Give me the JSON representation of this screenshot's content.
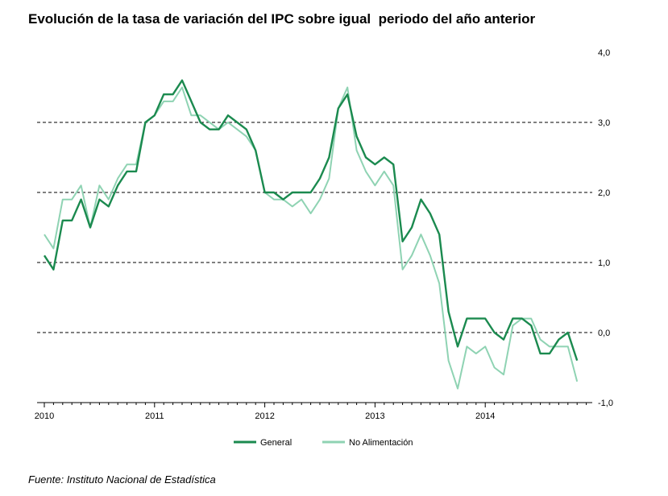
{
  "title": "Evolución de la tasa de variación del IPC sobre igual  periodo del año anterior",
  "source": "Fuente: Instituto Nacional de Estadística",
  "colors": {
    "general": "#1b8a4f",
    "no_alimentacion": "#8fd3b3",
    "grid": "#000000"
  },
  "chart_data": {
    "type": "line",
    "title": "Evolución de la tasa de variación del IPC sobre igual  periodo del año anterior",
    "xlabel": "",
    "ylabel": "",
    "ylim": [
      -1.0,
      4.0
    ],
    "y_ticks": [
      "4,0",
      "3,0",
      "2,0",
      "1,0",
      "0,0",
      "-1,0"
    ],
    "y_tick_values": [
      4.0,
      3.0,
      2.0,
      1.0,
      0.0,
      -1.0
    ],
    "y_axis_side": "right",
    "x_ticks": [
      "2010",
      "2011",
      "2012",
      "2013",
      "2014"
    ],
    "gridlines": [
      1.0,
      2.0,
      3.0,
      0.0
    ],
    "legend_position": "bottom-center",
    "x": [
      "2010-01",
      "2010-02",
      "2010-03",
      "2010-04",
      "2010-05",
      "2010-06",
      "2010-07",
      "2010-08",
      "2010-09",
      "2010-10",
      "2010-11",
      "2010-12",
      "2011-01",
      "2011-02",
      "2011-03",
      "2011-04",
      "2011-05",
      "2011-06",
      "2011-07",
      "2011-08",
      "2011-09",
      "2011-10",
      "2011-11",
      "2011-12",
      "2012-01",
      "2012-02",
      "2012-03",
      "2012-04",
      "2012-05",
      "2012-06",
      "2012-07",
      "2012-08",
      "2012-09",
      "2012-10",
      "2012-11",
      "2012-12",
      "2013-01",
      "2013-02",
      "2013-03",
      "2013-04",
      "2013-05",
      "2013-06",
      "2013-07",
      "2013-08",
      "2013-09",
      "2013-10",
      "2013-11",
      "2013-12",
      "2014-01",
      "2014-02",
      "2014-03",
      "2014-04",
      "2014-05",
      "2014-06",
      "2014-07",
      "2014-08",
      "2014-09",
      "2014-10",
      "2014-11"
    ],
    "series": [
      {
        "name": "General",
        "values": [
          1.1,
          0.9,
          1.6,
          1.6,
          1.9,
          1.5,
          1.9,
          1.8,
          2.1,
          2.3,
          2.3,
          3.0,
          3.1,
          3.4,
          3.4,
          3.6,
          3.3,
          3.0,
          2.9,
          2.9,
          3.1,
          3.0,
          2.9,
          2.6,
          2.0,
          2.0,
          1.9,
          2.0,
          2.0,
          2.0,
          2.2,
          2.5,
          3.2,
          3.4,
          2.8,
          2.5,
          2.4,
          2.5,
          2.4,
          1.3,
          1.5,
          1.9,
          1.7,
          1.4,
          0.3,
          -0.2,
          0.2,
          0.2,
          0.2,
          0.0,
          -0.1,
          0.2,
          0.2,
          0.1,
          -0.3,
          -0.3,
          -0.1,
          0.0,
          -0.4
        ]
      },
      {
        "name": "No Alimentación",
        "values": [
          1.4,
          1.2,
          1.9,
          1.9,
          2.1,
          1.5,
          2.1,
          1.9,
          2.2,
          2.4,
          2.4,
          3.0,
          3.1,
          3.3,
          3.3,
          3.5,
          3.1,
          3.1,
          3.0,
          2.9,
          3.0,
          2.9,
          2.8,
          2.6,
          2.0,
          1.9,
          1.9,
          1.8,
          1.9,
          1.7,
          1.9,
          2.2,
          3.2,
          3.5,
          2.6,
          2.3,
          2.1,
          2.3,
          2.1,
          0.9,
          1.1,
          1.4,
          1.1,
          0.7,
          -0.4,
          -0.8,
          -0.2,
          -0.3,
          -0.2,
          -0.5,
          -0.6,
          0.1,
          0.2,
          0.2,
          -0.1,
          -0.2,
          -0.2,
          -0.2,
          -0.7
        ]
      }
    ]
  }
}
